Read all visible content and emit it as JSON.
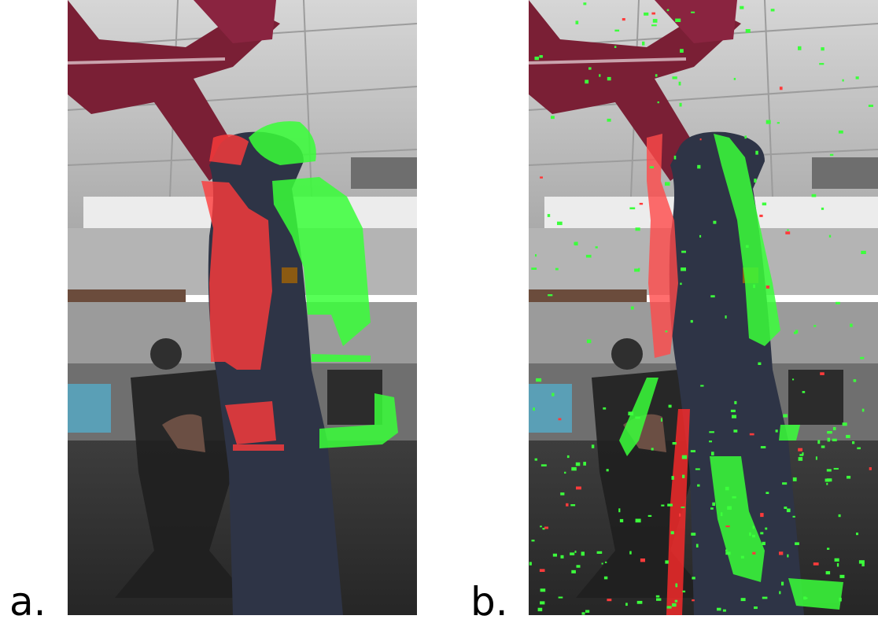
{
  "panels": [
    {
      "label": "a."
    },
    {
      "label": "b."
    }
  ]
}
